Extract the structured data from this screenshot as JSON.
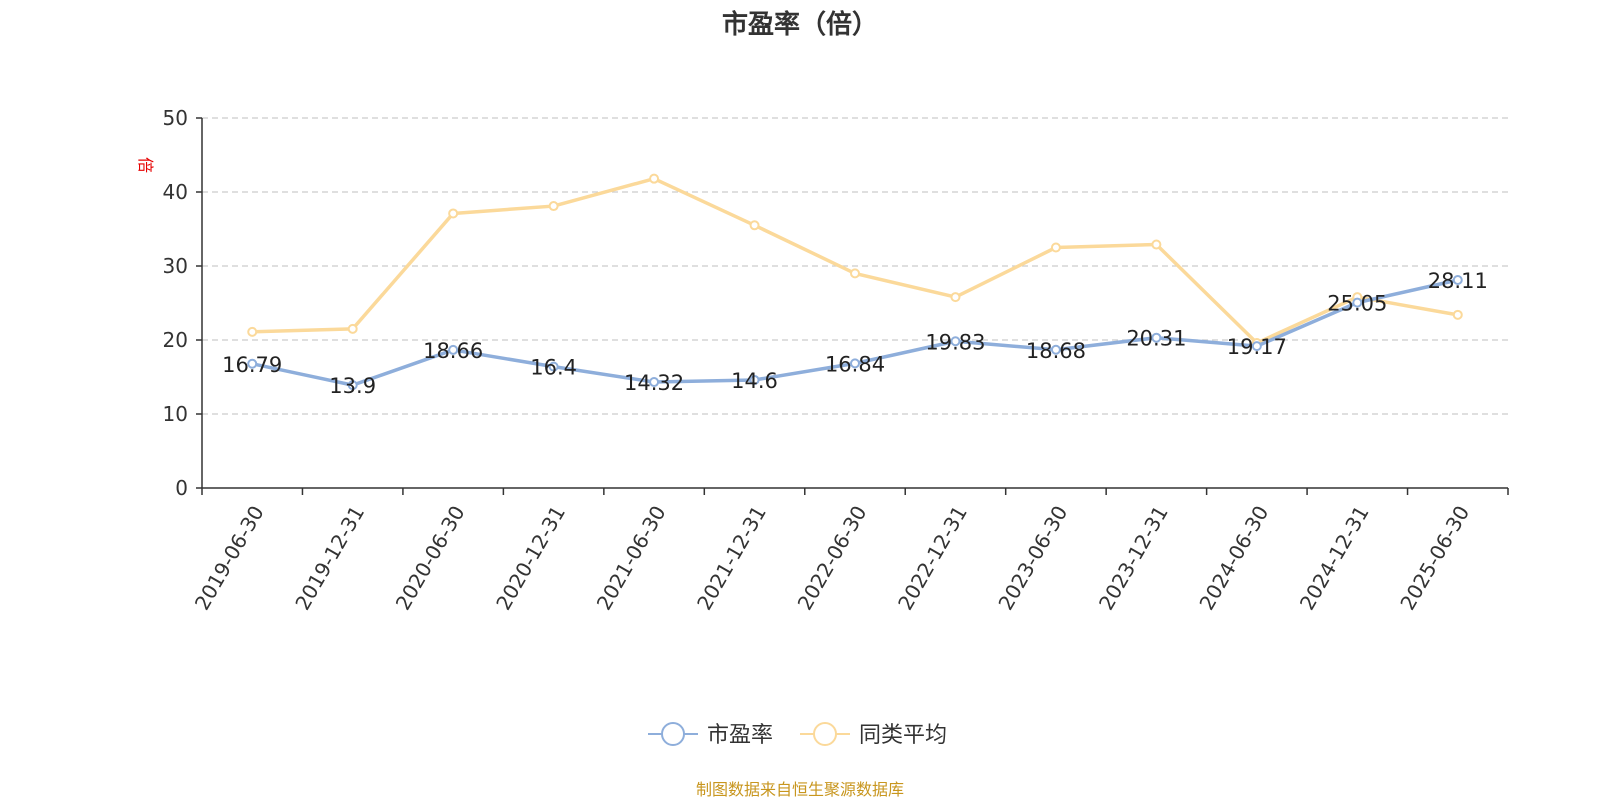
{
  "title": "市盈率（倍）",
  "source": "制图数据来自恒生聚源数据库",
  "chart_data": {
    "type": "line",
    "title": "市盈率（倍）",
    "ylabel": "倍",
    "ylim": [
      0,
      50
    ],
    "yticks": [
      0,
      10,
      20,
      30,
      40,
      50
    ],
    "grid": true,
    "legend_position": "bottom-center",
    "categories": [
      "2019-06-30",
      "2019-12-31",
      "2020-06-30",
      "2020-12-31",
      "2021-06-30",
      "2021-12-31",
      "2022-06-30",
      "2022-12-31",
      "2023-06-30",
      "2023-12-31",
      "2024-06-30",
      "2024-12-31",
      "2025-06-30"
    ],
    "series": [
      {
        "name": "市盈率",
        "color": "#8eaedb",
        "show_labels": true,
        "values": [
          16.79,
          13.9,
          18.66,
          16.4,
          14.32,
          14.6,
          16.84,
          19.83,
          18.68,
          20.31,
          19.17,
          25.05,
          28.11
        ]
      },
      {
        "name": "同类平均",
        "color": "#fbd99a",
        "show_labels": false,
        "values": [
          21.1,
          21.5,
          37.1,
          38.1,
          41.8,
          35.5,
          29.0,
          25.8,
          32.5,
          32.9,
          19.6,
          25.8,
          23.4
        ]
      }
    ]
  }
}
